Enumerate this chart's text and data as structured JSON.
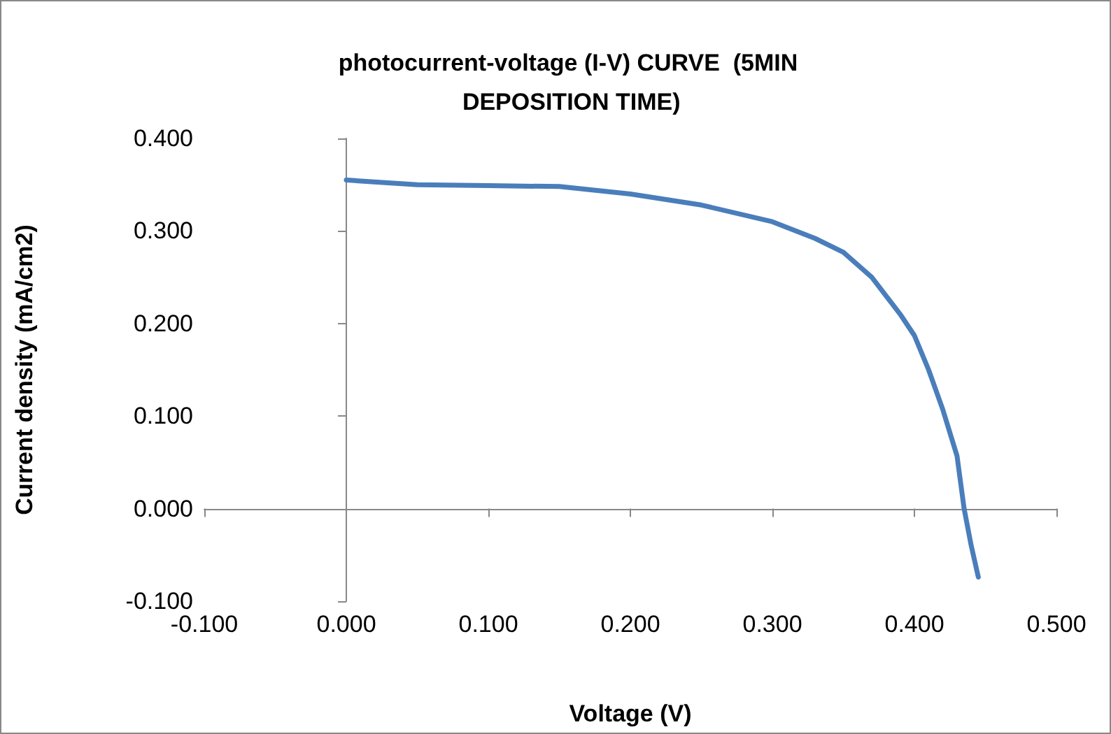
{
  "chart_data": {
    "type": "line",
    "title": "photocurrent-voltage (I-V) CURVE  (5MIN DEPOSITION TIME)",
    "xlabel": "Voltage (V)",
    "ylabel": "Current density (mA/cm2)",
    "x": [
      0,
      0.05,
      0.1,
      0.15,
      0.2,
      0.25,
      0.3,
      0.33,
      0.35,
      0.37,
      0.38,
      0.39,
      0.4,
      0.41,
      0.42,
      0.43,
      0.435,
      0.44,
      0.445
    ],
    "series": [
      {
        "color": "#4a7ebb",
        "values": [
          0.355,
          0.35,
          0.349,
          0.348,
          0.34,
          0.328,
          0.31,
          0.292,
          0.277,
          0.25,
          0.23,
          0.21,
          0.187,
          0.15,
          0.107,
          0.057,
          0.0,
          -0.04,
          -0.074
        ]
      }
    ],
    "xlim": [
      -0.1,
      0.5
    ],
    "ylim": [
      -0.1,
      0.4
    ],
    "xticks": [
      {
        "value": -0.1,
        "label": "-0.100"
      },
      {
        "value": 0,
        "label": "0.000"
      },
      {
        "value": 0.1,
        "label": "0.100"
      },
      {
        "value": 0.2,
        "label": "0.200"
      },
      {
        "value": 0.3,
        "label": "0.300"
      },
      {
        "value": 0.4,
        "label": "0.400"
      },
      {
        "value": 0.5,
        "label": "0.500"
      }
    ],
    "yticks": [
      {
        "value": -0.1,
        "label": "-0.100"
      },
      {
        "value": 0,
        "label": "0.000"
      },
      {
        "value": 0.1,
        "label": "0.100"
      },
      {
        "value": 0.2,
        "label": "0.200"
      },
      {
        "value": 0.3,
        "label": "0.300"
      },
      {
        "value": 0.4,
        "label": "0.400"
      }
    ],
    "marker": "none",
    "line_style": "solid"
  }
}
